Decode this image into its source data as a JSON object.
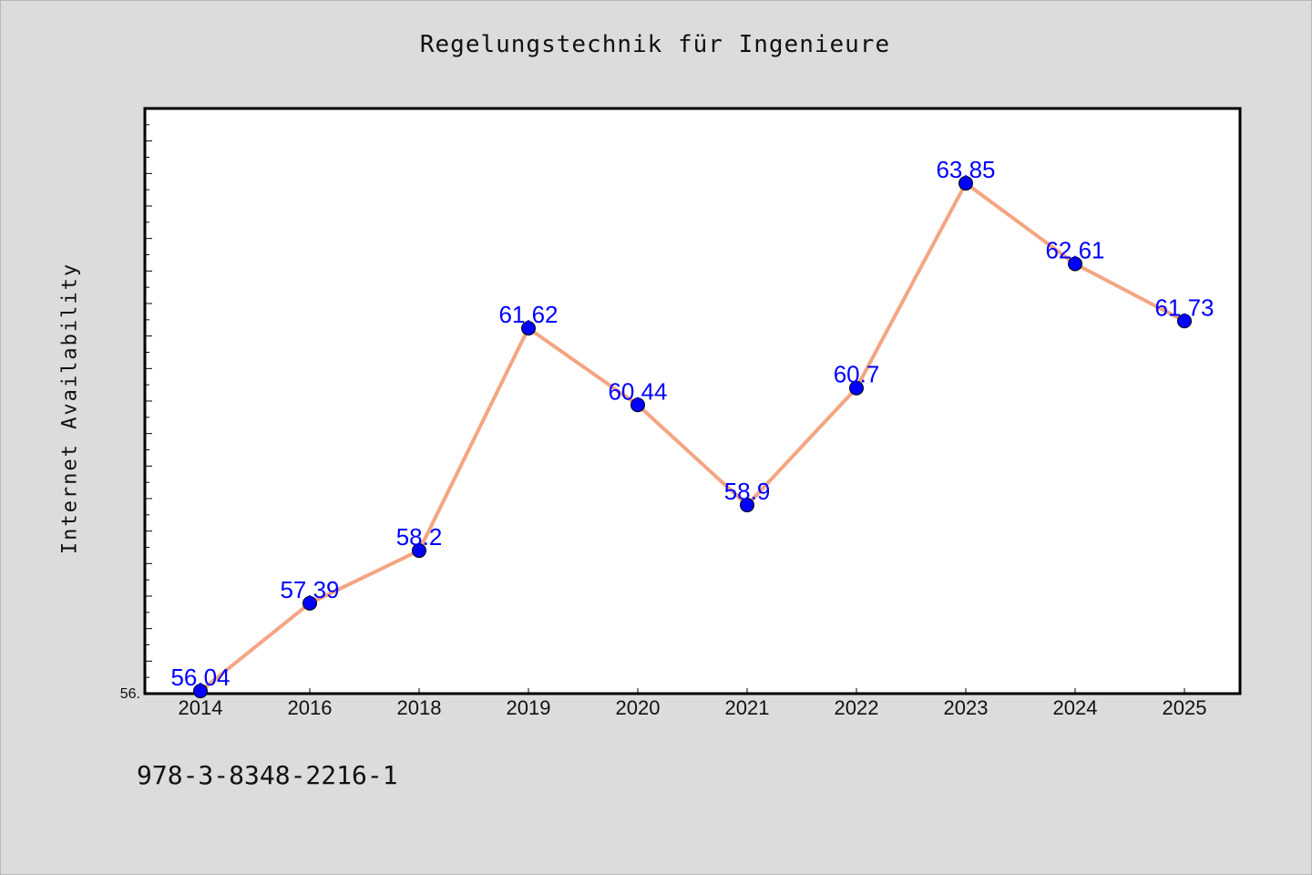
{
  "chart_data": {
    "type": "line",
    "title": "Regelungstechnik für Ingenieure",
    "xlabel": "",
    "ylabel": "Internet Availability",
    "categories": [
      "2014",
      "2016",
      "2018",
      "2019",
      "2020",
      "2021",
      "2022",
      "2023",
      "2024",
      "2025"
    ],
    "series": [
      {
        "values": [
          56.04,
          57.39,
          58.2,
          61.62,
          60.44,
          58.9,
          60.7,
          63.85,
          62.61,
          61.73
        ]
      }
    ],
    "data_labels": [
      "56.04",
      "57.39",
      "58.2",
      "61.62",
      "60.44",
      "58.9",
      "60.7",
      "63.85",
      "62.61",
      "61.73"
    ],
    "y_tick_label": "56.",
    "ylim": [
      56.0,
      65.0
    ],
    "grid": false,
    "line_color": "#f4a582",
    "marker_color": "#0000ff",
    "label_color": "#0000ff"
  },
  "footer": {
    "code": "978-3-8348-2216-1"
  }
}
